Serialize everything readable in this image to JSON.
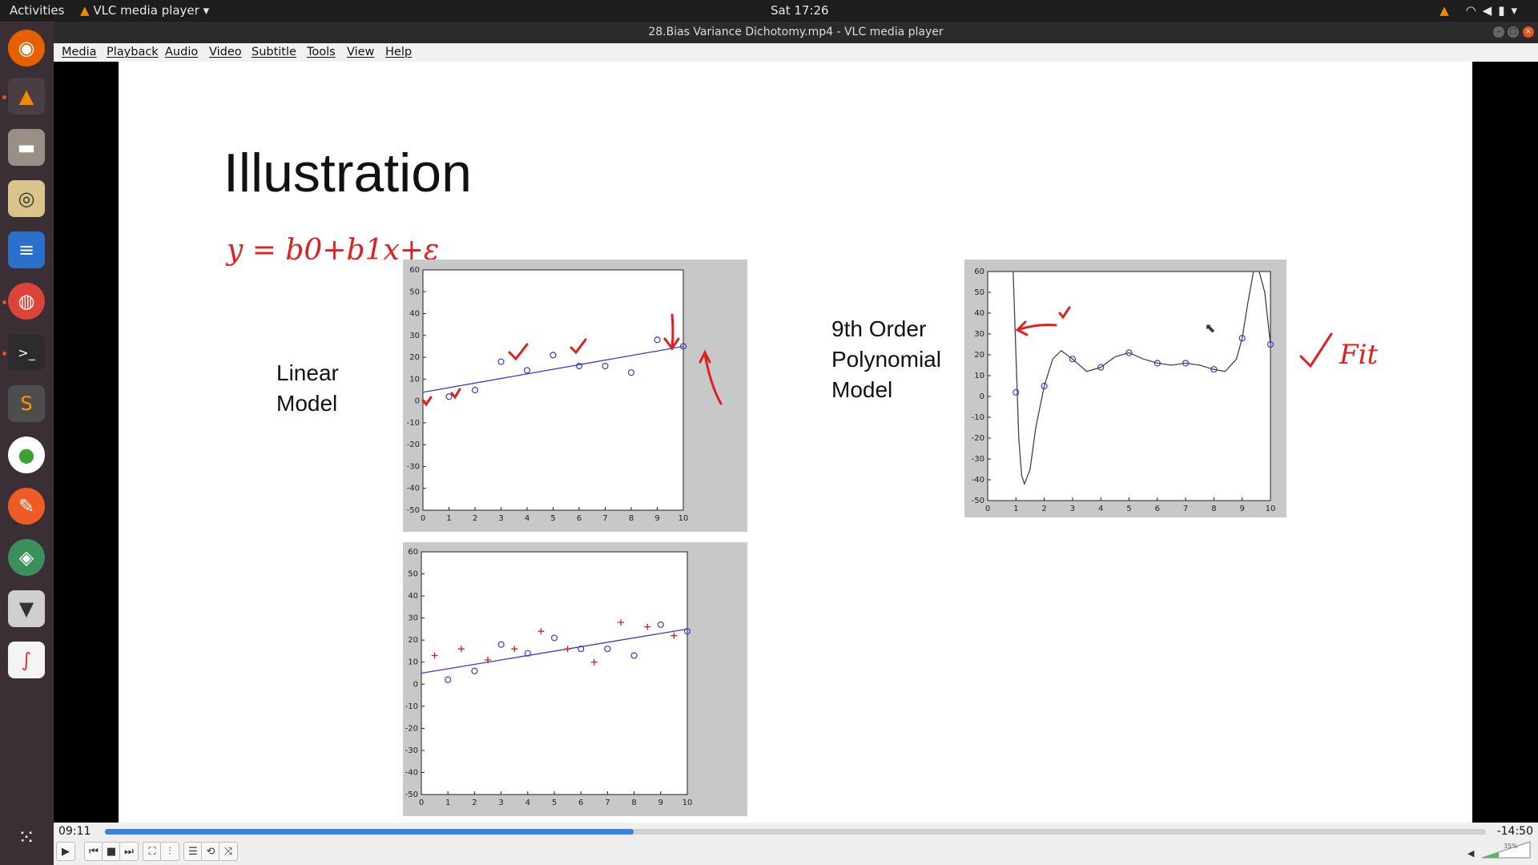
{
  "topbar": {
    "activities": "Activities",
    "app": "VLC media player",
    "clock": "Sat 17:26"
  },
  "window": {
    "title": "28.Bias Variance Dichotomy.mp4 - VLC media player"
  },
  "menu": [
    "Media",
    "Playback",
    "Audio",
    "Video",
    "Subtitle",
    "Tools",
    "View",
    "Help"
  ],
  "slide": {
    "title": "Illustration",
    "equation": "y = b0+b1x+ε",
    "linear_label": [
      "Linear",
      "Model"
    ],
    "poly_label": [
      "9th Order",
      "Polynomial",
      "Model"
    ],
    "fit_note": "Fit"
  },
  "chart_data": [
    {
      "type": "scatter",
      "title": "",
      "xlim": [
        0,
        10
      ],
      "ylim": [
        -50,
        60
      ],
      "xticks": [
        0,
        1,
        2,
        3,
        4,
        5,
        6,
        7,
        8,
        9,
        10
      ],
      "yticks": [
        60,
        50,
        40,
        30,
        20,
        10,
        0,
        -10,
        -20,
        -30,
        -40,
        -50
      ],
      "points": {
        "x": [
          1,
          2,
          3,
          4,
          5,
          6,
          7,
          8,
          9,
          10
        ],
        "y": [
          2,
          5,
          18,
          14,
          21,
          16,
          16,
          13,
          28,
          25
        ]
      },
      "line": {
        "x": [
          0,
          10
        ],
        "y": [
          4,
          25
        ]
      }
    },
    {
      "type": "scatter",
      "title": "",
      "xlim": [
        0,
        10
      ],
      "ylim": [
        -50,
        60
      ],
      "xticks": [
        0,
        1,
        2,
        3,
        4,
        5,
        6,
        7,
        8,
        9,
        10
      ],
      "yticks": [
        60,
        50,
        40,
        30,
        20,
        10,
        0,
        -10,
        -20,
        -30,
        -40,
        -50
      ],
      "points": {
        "x": [
          1,
          2,
          3,
          4,
          5,
          6,
          7,
          8,
          9,
          10
        ],
        "y": [
          2,
          6,
          18,
          14,
          21,
          16,
          16,
          13,
          27,
          24
        ]
      },
      "points_plus": {
        "x": [
          0.5,
          1.5,
          2.5,
          3.5,
          4.5,
          5.5,
          6.5,
          7.5,
          8.5,
          9.5
        ],
        "y": [
          13,
          16,
          11,
          16,
          24,
          16,
          10,
          28,
          26,
          22
        ]
      },
      "line": {
        "x": [
          0,
          10
        ],
        "y": [
          5,
          25
        ]
      }
    },
    {
      "type": "line",
      "title": "",
      "xlim": [
        0,
        10
      ],
      "ylim": [
        -50,
        60
      ],
      "xticks": [
        0,
        1,
        2,
        3,
        4,
        5,
        6,
        7,
        8,
        9,
        10
      ],
      "yticks": [
        60,
        50,
        40,
        30,
        20,
        10,
        0,
        -10,
        -20,
        -30,
        -40,
        -50
      ],
      "points": {
        "x": [
          1,
          2,
          3,
          4,
          5,
          6,
          7,
          8,
          9,
          10
        ],
        "y": [
          2,
          5,
          18,
          14,
          21,
          16,
          16,
          13,
          28,
          25
        ]
      },
      "curve": {
        "x": [
          0.9,
          1.0,
          1.1,
          1.2,
          1.3,
          1.5,
          1.7,
          2.0,
          2.3,
          2.6,
          3.0,
          3.5,
          4.0,
          4.5,
          5.0,
          5.5,
          6.0,
          6.5,
          7.0,
          7.5,
          8.0,
          8.4,
          8.8,
          9.0,
          9.2,
          9.4,
          9.6,
          9.8,
          10.0
        ],
        "y": [
          60,
          20,
          -20,
          -38,
          -42,
          -35,
          -15,
          5,
          18,
          22,
          18,
          12,
          14,
          19,
          21,
          18,
          16,
          15,
          16,
          15,
          13,
          12,
          18,
          28,
          45,
          60,
          60,
          50,
          25
        ]
      }
    }
  ],
  "player": {
    "elapsed": "09:11",
    "remaining": "-14:50",
    "progress": 0.383,
    "volume": "35%"
  }
}
